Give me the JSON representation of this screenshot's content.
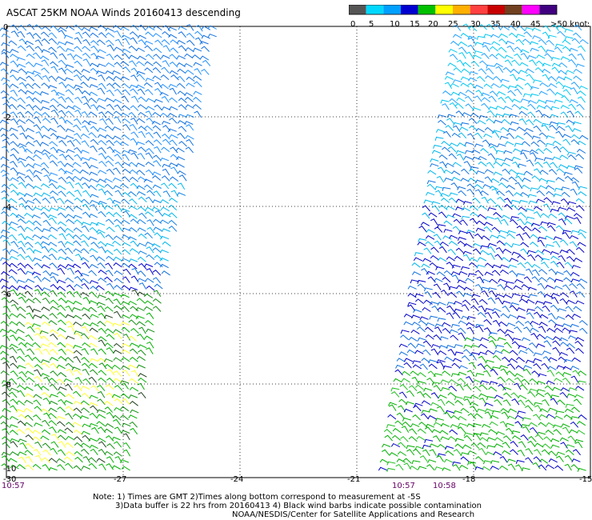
{
  "title": "ASCAT 25KM NOAA Winds 20160413 descending",
  "legend": {
    "labels": [
      "0",
      "5",
      "10",
      "15",
      "20",
      "25",
      "30",
      "35",
      "40",
      "45",
      ">50 knots"
    ],
    "colors": [
      "#555555",
      "#00d8ff",
      "#00a0ff",
      "#0000d0",
      "#00c000",
      "#ffff00",
      "#ffb000",
      "#ff4040",
      "#c80000",
      "#704020",
      "#ff00ff",
      "#400080"
    ]
  },
  "axes": {
    "longitude_labels": [
      "-30",
      "-27",
      "-24",
      "-21",
      "-18",
      "-15"
    ],
    "latitude_labels": [
      "0",
      "-2",
      "-4",
      "-6",
      "-8",
      "-10"
    ],
    "times": [
      {
        "label": "10:57"
      },
      {
        "label": "10:57"
      },
      {
        "label": "10:58"
      }
    ]
  },
  "notes": {
    "line1": "Note: 1) Times are GMT 2)Times along bottom correspond to measurement at -5S",
    "line2": "3)Data buffer is 22 hrs from 20160413 4) Black wind barbs indicate possible contamination",
    "line3": "NOAA/NESDIS/Center for Satellite Applications and Research"
  }
}
